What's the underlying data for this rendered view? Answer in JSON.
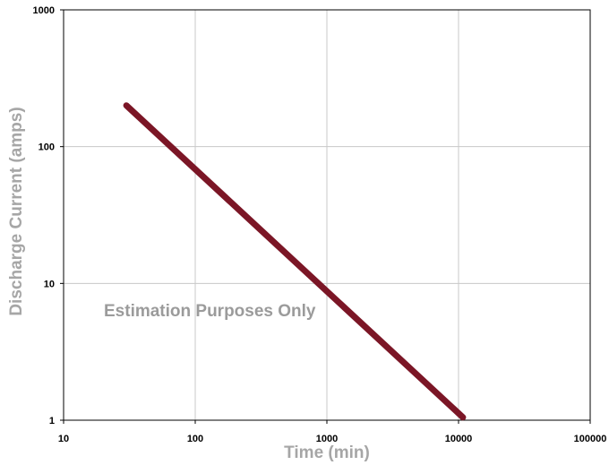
{
  "chart_data": {
    "type": "line",
    "title": "",
    "xlabel": "Time (min)",
    "ylabel": "Discharge Current (amps)",
    "x_scale": "log",
    "y_scale": "log",
    "xlim": [
      10,
      100000
    ],
    "ylim": [
      1,
      1000
    ],
    "x_ticks": [
      "10",
      "100",
      "1000",
      "10000",
      "100000"
    ],
    "y_ticks": [
      "1",
      "10",
      "100",
      "1000"
    ],
    "grid": true,
    "series": [
      {
        "x": [
          30,
          10800
        ],
        "y": [
          200,
          1.05
        ],
        "color": "#7b1626"
      }
    ],
    "annotation": "Estimation Purposes Only",
    "colors": {
      "axis_title": "#a6a6a6",
      "annotation": "#9b9b9b",
      "grid": "#c8c8c8"
    }
  }
}
